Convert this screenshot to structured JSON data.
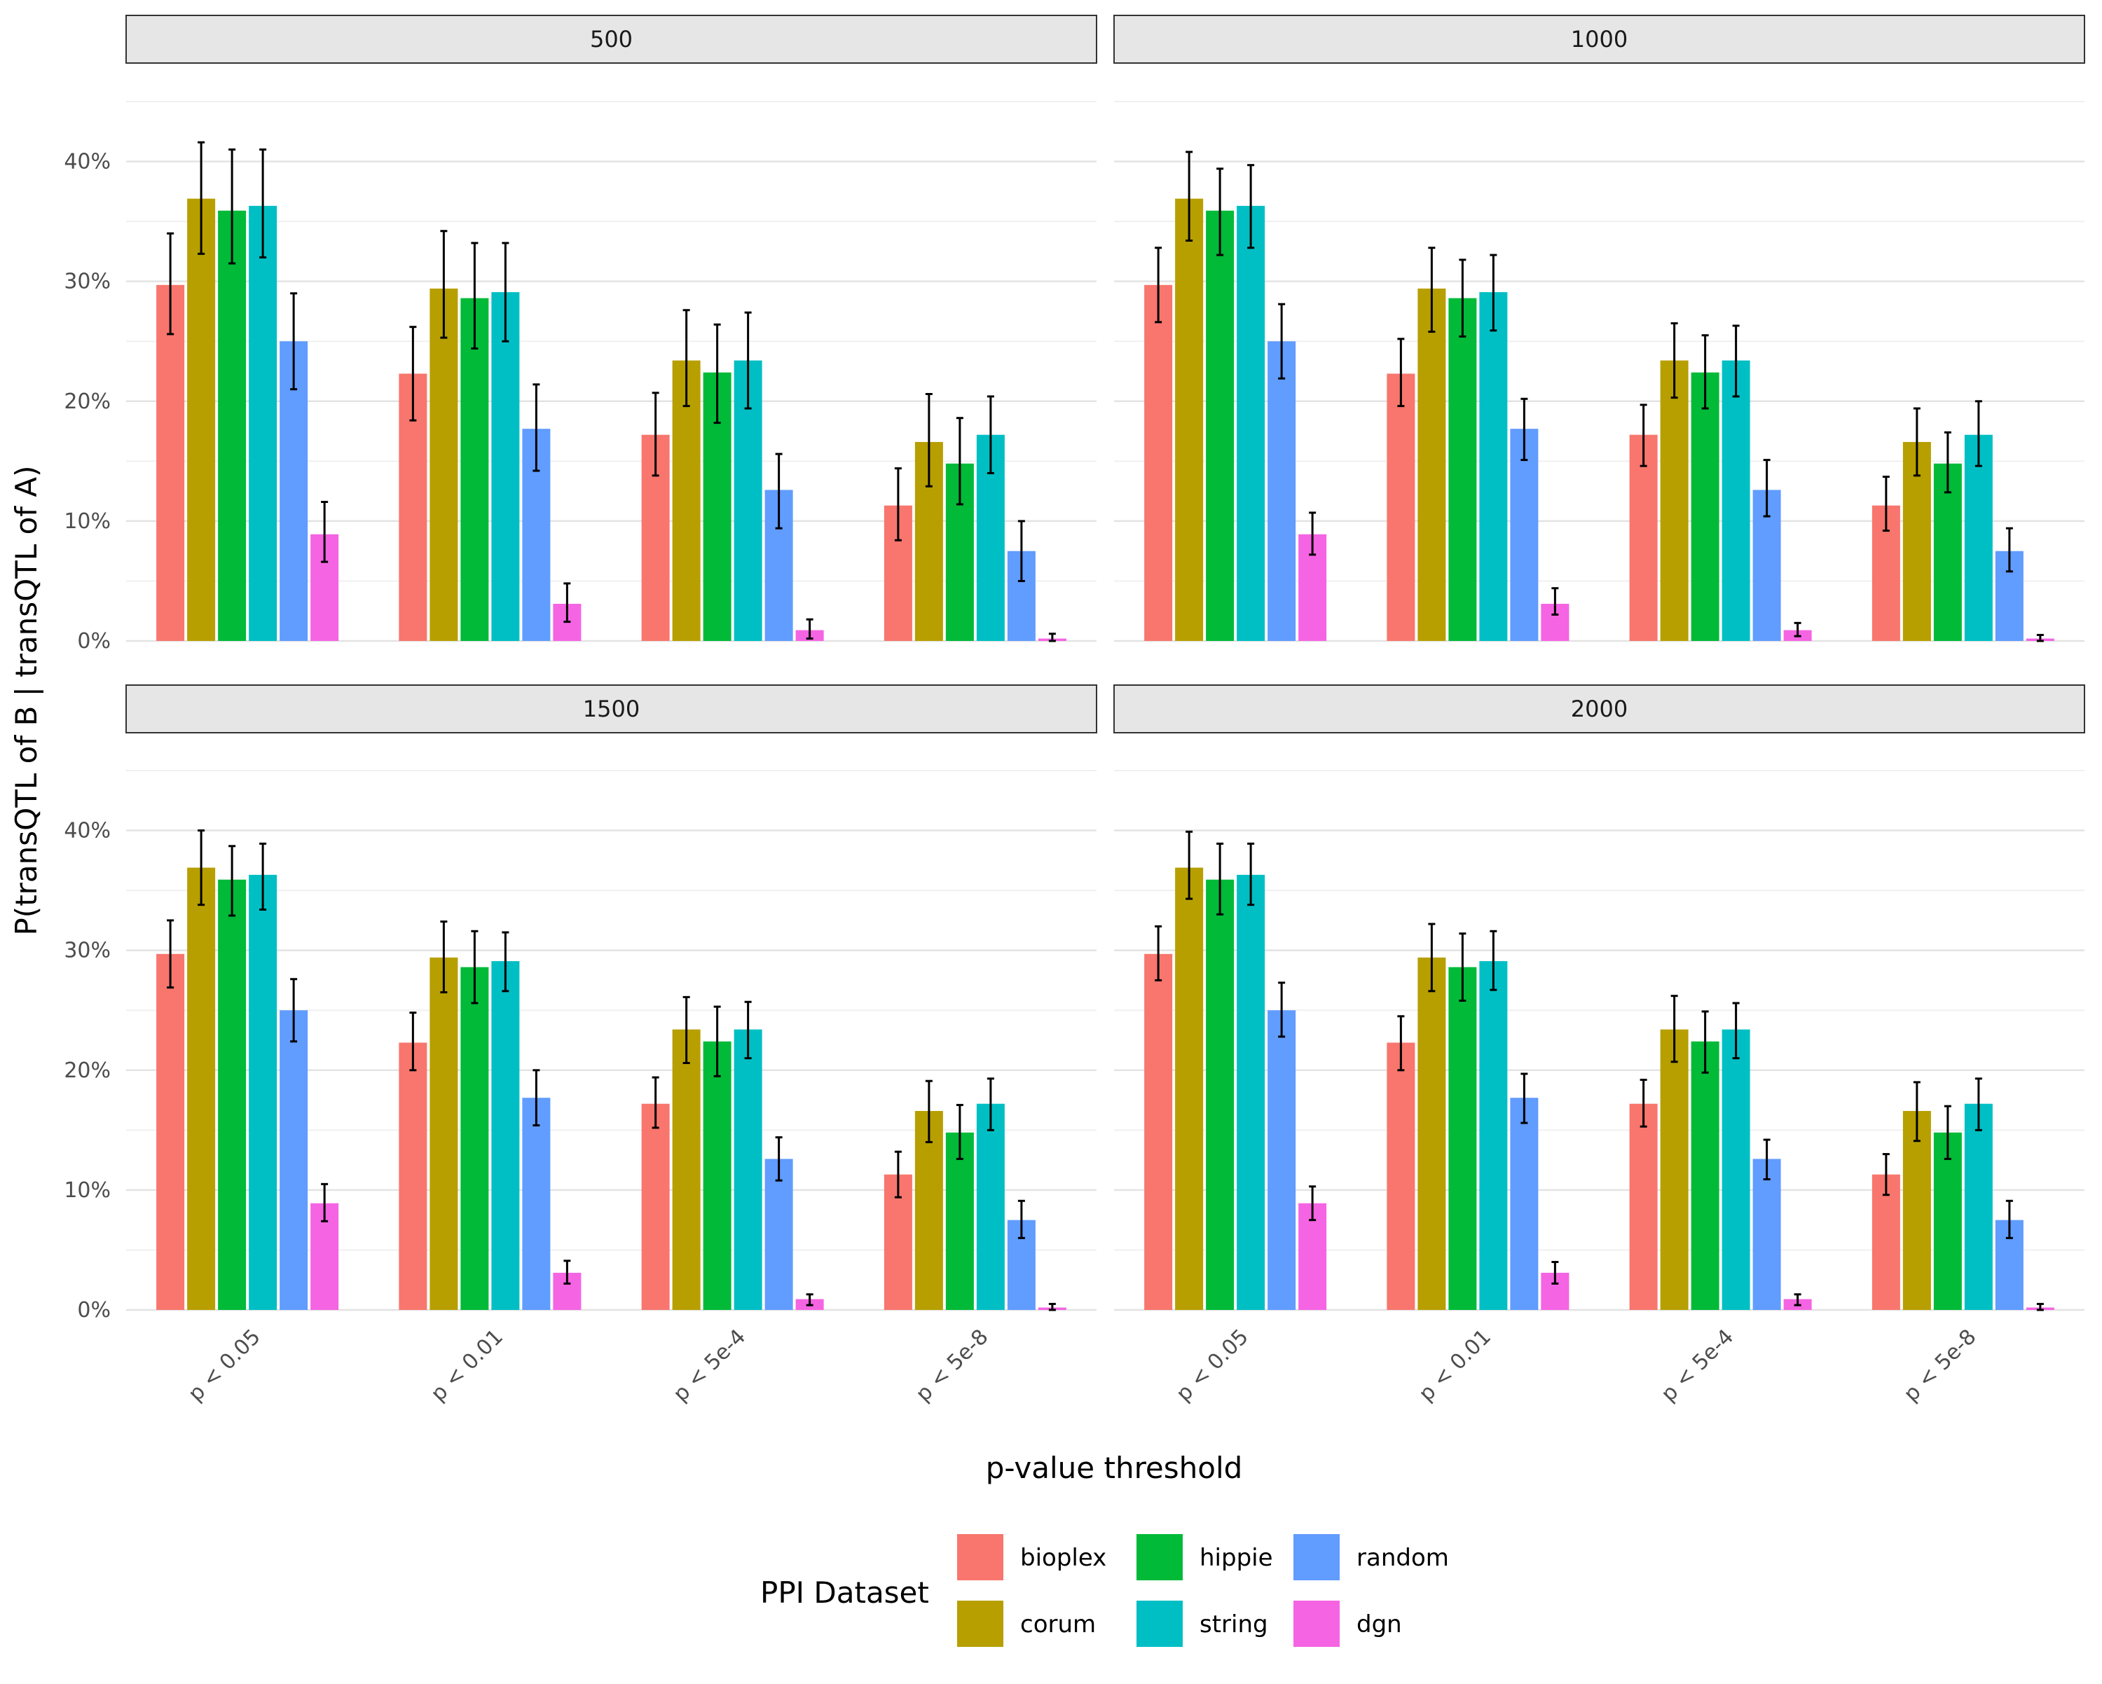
{
  "chart_data": {
    "type": "bar",
    "title": "",
    "xlabel": "p-value threshold",
    "ylabel": "P(transQTL of B | transQTL of A)",
    "ylim": [
      0,
      45
    ],
    "yticks": [
      0,
      10,
      20,
      30,
      40
    ],
    "ytick_labels": [
      "0%",
      "10%",
      "20%",
      "30%",
      "40%"
    ],
    "grid": true,
    "categories": [
      "p < 0.05",
      "p < 0.01",
      "p < 5e-4",
      "p < 5e-8"
    ],
    "legend": {
      "title": "PPI Dataset",
      "position": "bottom",
      "entries": [
        "bioplex",
        "corum",
        "hippie",
        "string",
        "random",
        "dgn"
      ]
    },
    "colors": {
      "bioplex": "#F8766D",
      "corum": "#B79F00",
      "hippie": "#00BA38",
      "string": "#00BFC4",
      "random": "#619CFF",
      "dgn": "#F564E3"
    },
    "series": [
      {
        "name": "bioplex",
        "values": [
          29.7,
          22.3,
          17.2,
          11.3
        ]
      },
      {
        "name": "corum",
        "values": [
          36.9,
          29.4,
          23.4,
          16.6
        ]
      },
      {
        "name": "hippie",
        "values": [
          35.9,
          28.6,
          22.4,
          14.8
        ]
      },
      {
        "name": "string",
        "values": [
          36.3,
          29.1,
          23.4,
          17.2
        ]
      },
      {
        "name": "random",
        "values": [
          25.0,
          17.7,
          12.6,
          7.5
        ]
      },
      {
        "name": "dgn",
        "values": [
          8.9,
          3.1,
          0.9,
          0.2
        ]
      }
    ],
    "panels": [
      {
        "label": "500",
        "errors": [
          [
            [
              25.6,
              34.0
            ],
            [
              18.4,
              26.2
            ],
            [
              13.8,
              20.7
            ],
            [
              8.4,
              14.4
            ]
          ],
          [
            [
              32.3,
              41.6
            ],
            [
              25.3,
              34.2
            ],
            [
              19.6,
              27.6
            ],
            [
              12.9,
              20.6
            ]
          ],
          [
            [
              31.5,
              41.0
            ],
            [
              24.4,
              33.2
            ],
            [
              18.2,
              26.4
            ],
            [
              11.4,
              18.6
            ]
          ],
          [
            [
              32.0,
              41.0
            ],
            [
              25.0,
              33.2
            ],
            [
              19.4,
              27.4
            ],
            [
              14.0,
              20.4
            ]
          ],
          [
            [
              21.0,
              29.0
            ],
            [
              14.2,
              21.4
            ],
            [
              9.4,
              15.6
            ],
            [
              5.0,
              10.0
            ]
          ],
          [
            [
              6.6,
              11.6
            ],
            [
              1.6,
              4.8
            ],
            [
              0.2,
              1.8
            ],
            [
              0.0,
              0.6
            ]
          ]
        ]
      },
      {
        "label": "1000",
        "errors": [
          [
            [
              26.6,
              32.8
            ],
            [
              19.6,
              25.2
            ],
            [
              14.6,
              19.7
            ],
            [
              9.2,
              13.7
            ]
          ],
          [
            [
              33.4,
              40.8
            ],
            [
              25.8,
              32.8
            ],
            [
              20.3,
              26.5
            ],
            [
              13.8,
              19.4
            ]
          ],
          [
            [
              32.2,
              39.4
            ],
            [
              25.4,
              31.8
            ],
            [
              19.4,
              25.5
            ],
            [
              12.4,
              17.4
            ]
          ],
          [
            [
              32.8,
              39.7
            ],
            [
              25.9,
              32.2
            ],
            [
              20.4,
              26.3
            ],
            [
              14.6,
              20.0
            ]
          ],
          [
            [
              21.9,
              28.1
            ],
            [
              15.1,
              20.2
            ],
            [
              10.4,
              15.1
            ],
            [
              5.8,
              9.4
            ]
          ],
          [
            [
              7.2,
              10.7
            ],
            [
              2.2,
              4.4
            ],
            [
              0.4,
              1.5
            ],
            [
              0.0,
              0.5
            ]
          ]
        ]
      },
      {
        "label": "1500",
        "errors": [
          [
            [
              26.9,
              32.5
            ],
            [
              20.0,
              24.8
            ],
            [
              15.2,
              19.4
            ],
            [
              9.4,
              13.2
            ]
          ],
          [
            [
              33.8,
              40.0
            ],
            [
              26.5,
              32.4
            ],
            [
              20.6,
              26.1
            ],
            [
              14.0,
              19.1
            ]
          ],
          [
            [
              32.9,
              38.7
            ],
            [
              25.6,
              31.6
            ],
            [
              19.5,
              25.3
            ],
            [
              12.6,
              17.1
            ]
          ],
          [
            [
              33.4,
              38.9
            ],
            [
              26.6,
              31.5
            ],
            [
              21.0,
              25.7
            ],
            [
              15.0,
              19.3
            ]
          ],
          [
            [
              22.4,
              27.6
            ],
            [
              15.4,
              20.0
            ],
            [
              10.8,
              14.4
            ],
            [
              6.0,
              9.1
            ]
          ],
          [
            [
              7.4,
              10.5
            ],
            [
              2.2,
              4.1
            ],
            [
              0.4,
              1.3
            ],
            [
              0.0,
              0.5
            ]
          ]
        ]
      },
      {
        "label": "2000",
        "errors": [
          [
            [
              27.5,
              32.0
            ],
            [
              20.0,
              24.5
            ],
            [
              15.3,
              19.2
            ],
            [
              9.6,
              13.0
            ]
          ],
          [
            [
              34.3,
              39.9
            ],
            [
              26.6,
              32.2
            ],
            [
              20.7,
              26.2
            ],
            [
              14.1,
              19.0
            ]
          ],
          [
            [
              33.0,
              38.9
            ],
            [
              25.8,
              31.4
            ],
            [
              19.8,
              24.9
            ],
            [
              12.6,
              17.0
            ]
          ],
          [
            [
              33.8,
              38.9
            ],
            [
              26.7,
              31.6
            ],
            [
              21.0,
              25.6
            ],
            [
              15.0,
              19.3
            ]
          ],
          [
            [
              22.8,
              27.3
            ],
            [
              15.6,
              19.7
            ],
            [
              10.9,
              14.2
            ],
            [
              6.0,
              9.1
            ]
          ],
          [
            [
              7.5,
              10.3
            ],
            [
              2.2,
              4.0
            ],
            [
              0.4,
              1.3
            ],
            [
              0.0,
              0.5
            ]
          ]
        ]
      }
    ]
  }
}
